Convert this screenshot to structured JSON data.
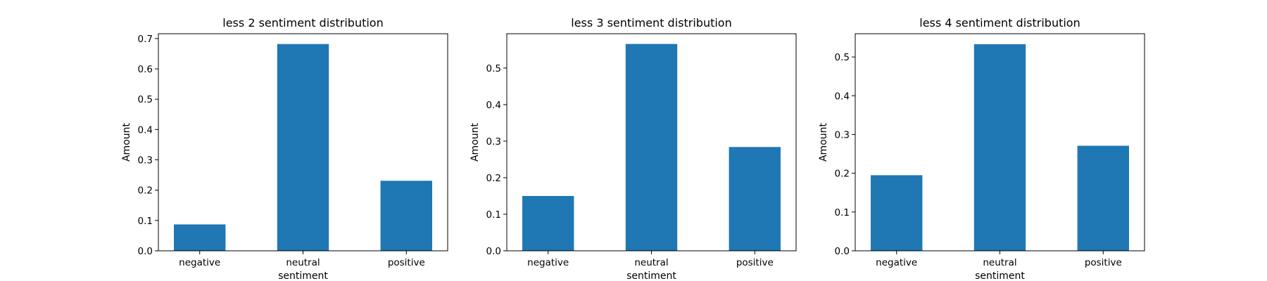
{
  "chart_data": [
    {
      "type": "bar",
      "title": "less 2 sentiment distribution",
      "xlabel": "sentiment",
      "ylabel": "Amount",
      "categories": [
        "negative",
        "neutral",
        "positive"
      ],
      "values": [
        0.087,
        0.682,
        0.231
      ],
      "ylim": [
        0,
        0.716
      ],
      "yticks": [
        0.0,
        0.1,
        0.2,
        0.3,
        0.4,
        0.5,
        0.6,
        0.7
      ],
      "ytick_labels": [
        "0.0",
        "0.1",
        "0.2",
        "0.3",
        "0.4",
        "0.5",
        "0.6",
        "0.7"
      ],
      "color": "#1f77b4",
      "grid": false
    },
    {
      "type": "bar",
      "title": "less 3 sentiment distribution",
      "xlabel": "sentiment",
      "ylabel": "Amount",
      "categories": [
        "negative",
        "neutral",
        "positive"
      ],
      "values": [
        0.15,
        0.566,
        0.284
      ],
      "ylim": [
        0,
        0.594
      ],
      "yticks": [
        0.0,
        0.1,
        0.2,
        0.3,
        0.4,
        0.5
      ],
      "ytick_labels": [
        "0.0",
        "0.1",
        "0.2",
        "0.3",
        "0.4",
        "0.5"
      ],
      "color": "#1f77b4",
      "grid": false
    },
    {
      "type": "bar",
      "title": "less 4 sentiment distribution",
      "xlabel": "sentiment",
      "ylabel": "Amount",
      "categories": [
        "negative",
        "neutral",
        "positive"
      ],
      "values": [
        0.195,
        0.533,
        0.271
      ],
      "ylim": [
        0,
        0.56
      ],
      "yticks": [
        0.0,
        0.1,
        0.2,
        0.3,
        0.4,
        0.5
      ],
      "ytick_labels": [
        "0.0",
        "0.1",
        "0.2",
        "0.3",
        "0.4",
        "0.5"
      ],
      "color": "#1f77b4",
      "grid": false
    }
  ]
}
